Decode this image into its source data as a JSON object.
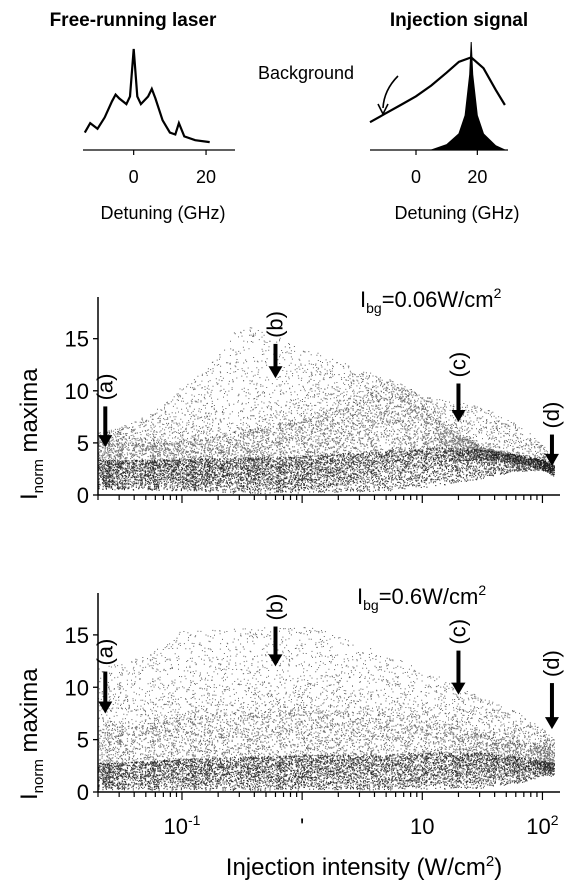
{
  "chart_data": [
    {
      "type": "line",
      "title": "Free-running laser",
      "xlabel": "Detuning (GHz)",
      "ylabel": "",
      "xlim": [
        -14,
        28
      ],
      "x_ticks": [
        0,
        20
      ],
      "x_tick_labels": [
        "0",
        "20"
      ],
      "series": [
        {
          "name": "",
          "x": [
            -13.5,
            -12,
            -10,
            -8,
            -6,
            -5,
            -4,
            -2,
            -1,
            0,
            1,
            2,
            4,
            5,
            6,
            8,
            10,
            11.5,
            12.5,
            14,
            17,
            21
          ],
          "y": [
            0.12,
            0.22,
            0.16,
            0.28,
            0.45,
            0.52,
            0.48,
            0.42,
            0.5,
            1.0,
            0.5,
            0.42,
            0.5,
            0.58,
            0.48,
            0.25,
            0.12,
            0.1,
            0.22,
            0.08,
            0.04,
            0.02
          ]
        }
      ]
    },
    {
      "type": "area",
      "title": "Injection signal",
      "xlabel": "Detuning (GHz)",
      "ylabel": "",
      "xlim": [
        -15,
        30
      ],
      "x_ticks": [
        0,
        20
      ],
      "x_tick_labels": [
        "0",
        "20"
      ],
      "annotations": [
        {
          "text": "Background"
        }
      ],
      "series": [
        {
          "name": "Background",
          "x": [
            -15,
            -10,
            -5,
            0,
            5,
            10,
            14,
            18,
            22,
            26,
            29
          ],
          "y": [
            0.22,
            0.3,
            0.38,
            0.46,
            0.56,
            0.68,
            0.78,
            0.82,
            0.72,
            0.52,
            0.38
          ]
        },
        {
          "name": "",
          "x": [
            5,
            10,
            14,
            16,
            17.5,
            18,
            18.5,
            20,
            22,
            26,
            29
          ],
          "y": [
            0.0,
            0.05,
            0.15,
            0.32,
            0.7,
            1.0,
            0.7,
            0.32,
            0.15,
            0.04,
            0.0
          ]
        }
      ]
    },
    {
      "type": "scatter",
      "title": "",
      "panel_label": {
        "main": "I",
        "sub": "bg",
        "text": "=0.06W/cm",
        "sup": "2"
      },
      "xlabel": "",
      "ylabel": {
        "main": "I",
        "sub": "norm",
        "rest": " maxima"
      },
      "x_scale": "log",
      "xlim": [
        0.02,
        140
      ],
      "ylim": [
        0,
        19
      ],
      "y_ticks": [
        0,
        5,
        10,
        15
      ],
      "y_tick_labels": [
        "0",
        "5",
        "10",
        "15"
      ],
      "markers": [
        {
          "label": "(a)",
          "x": 0.023,
          "arrow_top": 8.5,
          "arrow_tip": 4.6
        },
        {
          "label": "(b)",
          "x": 0.6,
          "arrow_top": 14.5,
          "arrow_tip": 11.2
        },
        {
          "label": "(c)",
          "x": 20,
          "arrow_top": 10.7,
          "arrow_tip": 7.0
        },
        {
          "label": "(d)",
          "x": 120,
          "arrow_top": 5.8,
          "arrow_tip": 2.8
        }
      ],
      "bands": [
        {
          "x": [
            0.02,
            0.05,
            0.1,
            0.3,
            1,
            3,
            6,
            15,
            30,
            60,
            100,
            125
          ],
          "y_low": [
            0.5,
            0.5,
            0.4,
            0.4,
            0.5,
            1.2,
            2.0,
            3.2,
            3.4,
            3.1,
            2.4,
            1.8
          ],
          "y_high": [
            4.8,
            5.0,
            5.2,
            6.2,
            7.4,
            8.8,
            9.3,
            6.5,
            4.6,
            3.8,
            3.4,
            2.8
          ]
        },
        {
          "x": [
            0.02,
            0.05,
            0.1,
            0.3,
            1,
            3,
            6,
            15,
            30,
            60,
            100,
            125
          ],
          "y_low": [
            0.5,
            0.5,
            0.4,
            0.2,
            0.2,
            0.3,
            0.5,
            1.0,
            1.6,
            2.3,
            2.4,
            1.8
          ],
          "y_high": [
            3.4,
            3.4,
            3.5,
            3.6,
            3.8,
            4.2,
            4.5,
            4.6,
            4.4,
            3.9,
            3.4,
            2.8
          ]
        }
      ],
      "sparse_ymax": [
        {
          "x": 0.02,
          "y": 6
        },
        {
          "x": 0.1,
          "y": 10.5
        },
        {
          "x": 0.3,
          "y": 16.5
        },
        {
          "x": 1,
          "y": 14
        },
        {
          "x": 3,
          "y": 12
        },
        {
          "x": 10,
          "y": 9.5
        },
        {
          "x": 125,
          "y": 3.5
        }
      ]
    },
    {
      "type": "scatter",
      "title": "",
      "panel_label": {
        "main": "I",
        "sub": "bg",
        "text": "=0.6W/cm",
        "sup": "2"
      },
      "xlabel": {
        "text": "Injection intensity (W/cm",
        "sup": "2",
        "tail": ")"
      },
      "ylabel": {
        "main": "I",
        "sub": "norm",
        "rest": " maxima"
      },
      "x_scale": "log",
      "xlim": [
        0.02,
        140
      ],
      "ylim": [
        0,
        19
      ],
      "y_ticks": [
        0,
        5,
        10,
        15
      ],
      "y_tick_labels": [
        "0",
        "5",
        "10",
        "15"
      ],
      "x_tick_labels": [
        {
          "x": 0.1,
          "base": "10",
          "sup": "-1"
        },
        {
          "x": 1,
          "base": "'",
          "sup": ""
        },
        {
          "x": 10,
          "base": "10",
          "sup": ""
        },
        {
          "x": 100,
          "base": "10",
          "sup": "2"
        }
      ],
      "markers": [
        {
          "label": "(a)",
          "x": 0.023,
          "arrow_top": 11.5,
          "arrow_tip": 7.5
        },
        {
          "label": "(b)",
          "x": 0.6,
          "arrow_top": 15.8,
          "arrow_tip": 12.0
        },
        {
          "label": "(c)",
          "x": 20,
          "arrow_top": 13.5,
          "arrow_tip": 9.3
        },
        {
          "label": "(d)",
          "x": 120,
          "arrow_top": 10.4,
          "arrow_tip": 6.0
        }
      ],
      "bands": [
        {
          "x": [
            0.02,
            0.05,
            0.1,
            0.3,
            1,
            3,
            10,
            30,
            60,
            100,
            125
          ],
          "y_low": [
            0.3,
            0.3,
            0.3,
            0.3,
            0.3,
            0.4,
            0.6,
            1.0,
            1.8,
            2.2,
            1.8
          ],
          "y_high": [
            6.0,
            6.5,
            7.2,
            7.6,
            7.8,
            7.5,
            6.5,
            5.5,
            4.6,
            4.2,
            3.8
          ]
        },
        {
          "x": [
            0.02,
            0.05,
            0.1,
            0.3,
            1,
            3,
            10,
            30,
            60,
            100,
            125
          ],
          "y_low": [
            0.2,
            0.2,
            0.2,
            0.2,
            0.2,
            0.2,
            0.3,
            0.4,
            0.8,
            1.6,
            1.5
          ],
          "y_high": [
            2.8,
            3.0,
            3.2,
            3.4,
            3.6,
            3.6,
            3.8,
            3.8,
            3.4,
            3.0,
            2.8
          ]
        }
      ],
      "sparse_ymax": [
        {
          "x": 0.02,
          "y": 12
        },
        {
          "x": 0.1,
          "y": 15.5
        },
        {
          "x": 1,
          "y": 16
        },
        {
          "x": 3,
          "y": 14
        },
        {
          "x": 10,
          "y": 11.5
        },
        {
          "x": 30,
          "y": 9
        },
        {
          "x": 125,
          "y": 5
        }
      ]
    }
  ]
}
